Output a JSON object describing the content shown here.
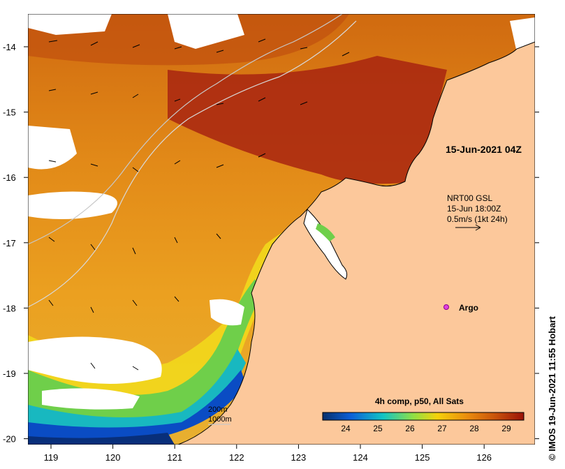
{
  "map": {
    "x_ticks": [
      "119",
      "120",
      "121",
      "122",
      "123",
      "124",
      "125",
      "126"
    ],
    "y_ticks": [
      "-14",
      "-15",
      "-16",
      "-17",
      "-18",
      "-19",
      "-20"
    ],
    "colors": {
      "land": "#FCC89B",
      "no_data": "#FFFFFF",
      "warm": "#B83C0A",
      "hot": "#9A1208"
    }
  },
  "annotations": {
    "composite_time": "15-Jun-2021 04Z",
    "currents_source": "NRT00 GSL",
    "currents_time": "15-Jun 18:00Z",
    "current_scale": "0.5m/s (1kt 24h)",
    "argo_label": "Argo",
    "isobath_200": "200m",
    "isobath_1000": "1000m"
  },
  "colorbar": {
    "title": "4h comp, p50, All Sats",
    "ticks": [
      "24",
      "25",
      "26",
      "27",
      "28",
      "29"
    ],
    "colors": [
      "#08306B",
      "#0B5FD8",
      "#12C4C4",
      "#8FE045",
      "#F5D20A",
      "#EA8C0E",
      "#C8520A",
      "#9A1208"
    ]
  },
  "credit": "© IMOS 19-Jun-2021 11:55 Hobart"
}
